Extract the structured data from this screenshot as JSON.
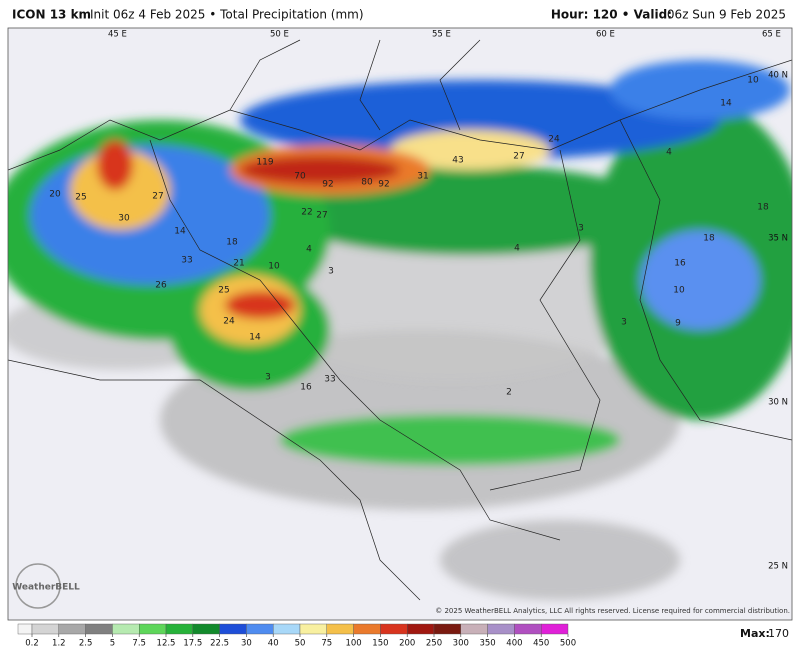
{
  "header": {
    "model": "ICON 13 km",
    "init": "Init 06z 4 Feb 2025 • Total Precipitation (mm)",
    "hour": "Hour: 120 • Valid:",
    "valid": "06z Sun 9 Feb 2025"
  },
  "map": {
    "lon_labels": [
      "45 E",
      "50 E",
      "55 E",
      "60 E",
      "65 E"
    ],
    "lat_labels": [
      "40 N",
      "35 N",
      "30 N",
      "25 N"
    ],
    "values": [
      119,
      70,
      92,
      80,
      92,
      31,
      43,
      27,
      24,
      10,
      14,
      4,
      18,
      18,
      16,
      10,
      9,
      20,
      25,
      30,
      27,
      14,
      33,
      18,
      21,
      26,
      25,
      24,
      14,
      22,
      27,
      4,
      10,
      3,
      3,
      16,
      33,
      2,
      3,
      3,
      4
    ],
    "copyright": "© 2025 WeatherBELL Analytics, LLC All rights reserved. License required for commercial distribution.",
    "logo": "WeatherBELL"
  },
  "colorbar": {
    "ticks": [
      0.2,
      1.2,
      2.5,
      5,
      7.5,
      12.5,
      17.5,
      22.5,
      30,
      40,
      50,
      75,
      100,
      150,
      200,
      250,
      300,
      350,
      400,
      450,
      500
    ],
    "colors": [
      "#f4f4f4",
      "#d4d4d4",
      "#a8a8a8",
      "#808080",
      "#b6eab0",
      "#5ed65a",
      "#27b23a",
      "#138a2c",
      "#1e4ed8",
      "#4f8cf0",
      "#a8d8f8",
      "#f8f0a0",
      "#f4c04a",
      "#ea7a2c",
      "#d8341e",
      "#a01810",
      "#7a1a10",
      "#c8b0b8",
      "#a890c8",
      "#b050c0",
      "#e020d8"
    ],
    "max_label": "Max:",
    "max": 170
  }
}
